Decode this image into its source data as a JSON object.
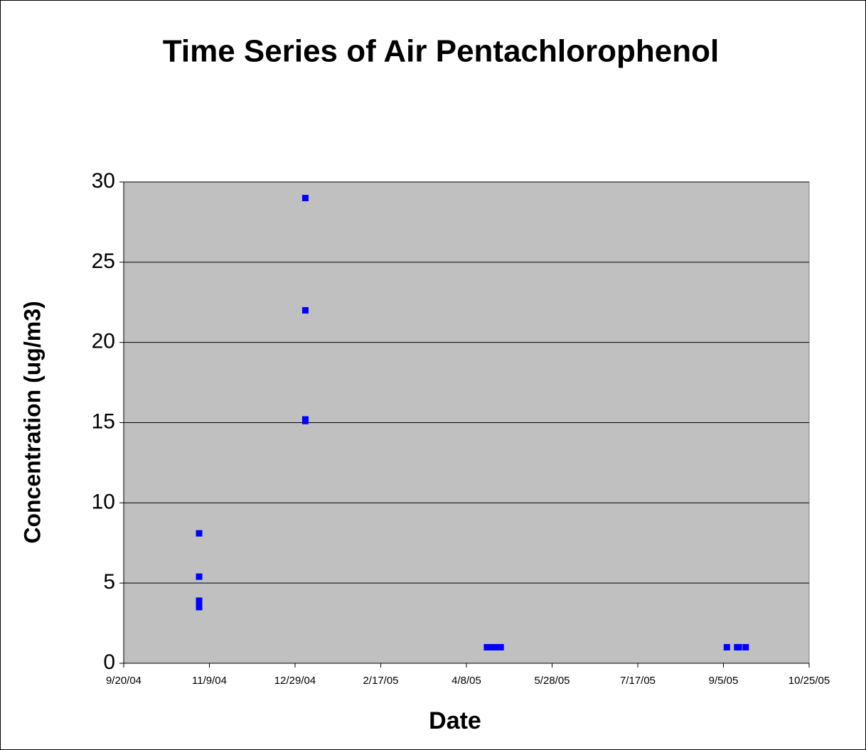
{
  "chart_data": {
    "type": "scatter",
    "title": "Time Series of Air Pentachlorophenol",
    "x_label": "Date",
    "y_label": "Concentration (ug/m3)",
    "series": [
      {
        "color": "#0000ff",
        "x": [
          "11/3/04",
          "11/3/04",
          "11/3/04",
          "11/3/04",
          "1/4/05",
          "1/4/05",
          "1/4/05",
          "1/4/05",
          "4/20/05",
          "4/23/05",
          "4/25/05",
          "4/28/05",
          "9/7/05",
          "9/13/05",
          "9/14/05",
          "9/18/05"
        ],
        "values": [
          8.1,
          5.4,
          3.9,
          3.5,
          29,
          22,
          15.2,
          15.1,
          1,
          1,
          1,
          1,
          1,
          1,
          1,
          1
        ]
      }
    ],
    "xlim": [
      "9/20/04",
      "10/25/05"
    ],
    "xticks": [
      "9/20/04",
      "11/9/04",
      "12/29/04",
      "2/17/05",
      "4/8/05",
      "5/28/05",
      "7/17/05",
      "9/5/05",
      "10/25/05"
    ],
    "ylim": [
      0,
      30
    ],
    "yticks": [
      0,
      5,
      10,
      15,
      20,
      25,
      30
    ],
    "grid": true,
    "plot_background": "#c0c0c0"
  }
}
